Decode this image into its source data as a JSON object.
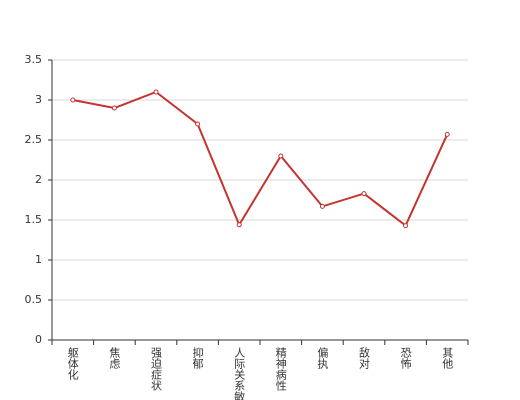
{
  "chart_data": {
    "type": "line",
    "categories": [
      "躯体化",
      "焦虑",
      "强迫症状",
      "抑郁",
      "人际关系敏感",
      "精神病性",
      "偏执",
      "敌对",
      "恐怖",
      "其他"
    ],
    "values": [
      3.0,
      2.9,
      3.1,
      2.7,
      1.44,
      2.3,
      1.67,
      1.83,
      1.43,
      2.57
    ],
    "color": "#c23531",
    "ylim": [
      0,
      3.5
    ],
    "yticks": [
      0,
      0.5,
      1,
      1.5,
      2,
      2.5,
      3,
      3.5
    ],
    "grid": true
  }
}
